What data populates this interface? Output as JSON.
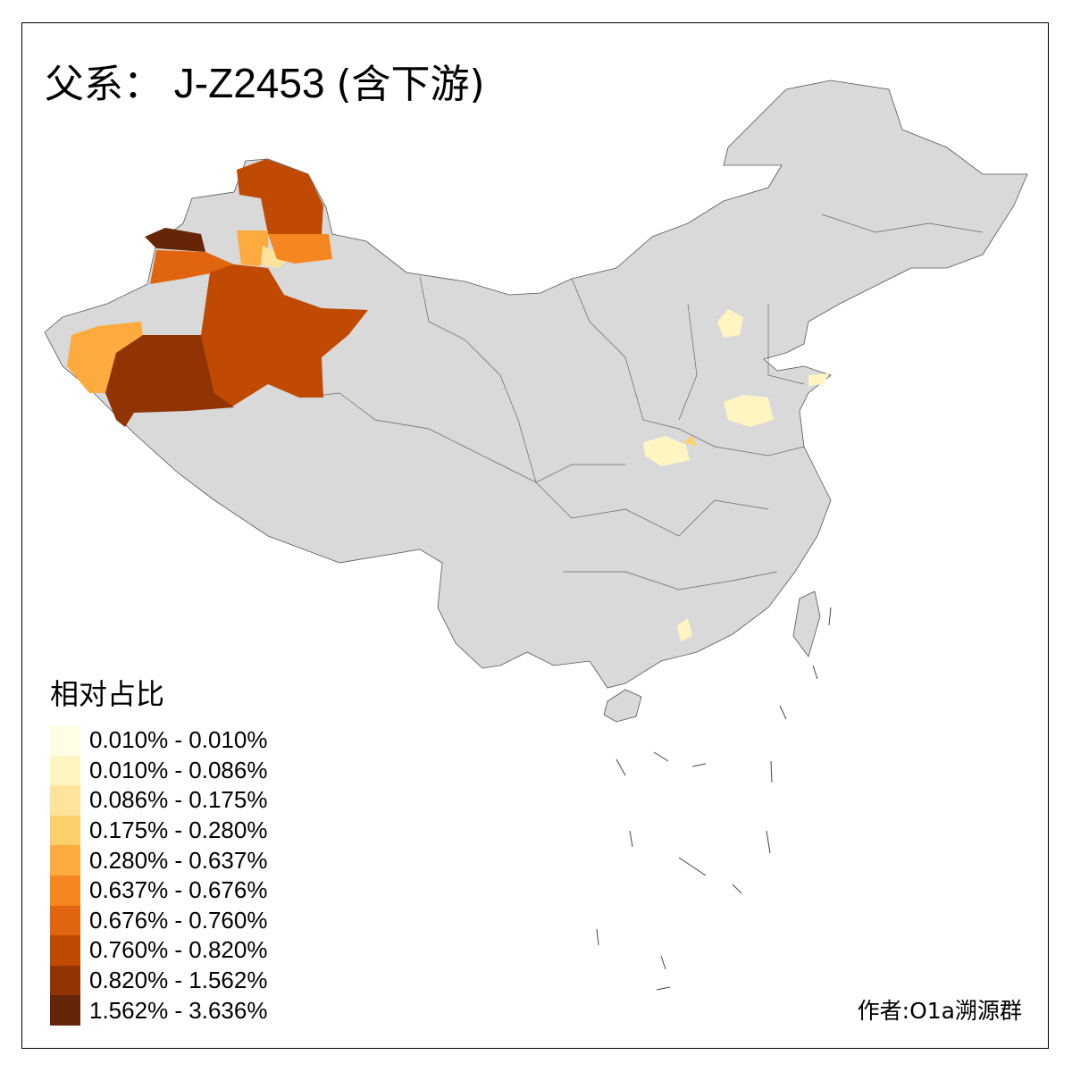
{
  "title": {
    "prefix": "父系：",
    "haplogroup": "J-Z2453",
    "suffix": "(含下游)"
  },
  "map": {
    "base_color": "#d9d9d9",
    "border_color": "#555555",
    "regions": [
      {
        "name": "Altay",
        "color": "#c04a02"
      },
      {
        "name": "Bortala",
        "color": "#662506"
      },
      {
        "name": "Ili",
        "color": "#e1640f"
      },
      {
        "name": "Tacheng",
        "color": "#fdaa3e"
      },
      {
        "name": "Karamay",
        "color": "#fee49a"
      },
      {
        "name": "Changji",
        "color": "#f6861f"
      },
      {
        "name": "Bayingolin",
        "color": "#c04a02"
      },
      {
        "name": "Kashgar",
        "color": "#fdaa3e"
      },
      {
        "name": "Hotan",
        "color": "#923304"
      },
      {
        "name": "Beijing",
        "color": "#fff5c2"
      },
      {
        "name": "Shandong-west",
        "color": "#fff5c2"
      },
      {
        "name": "Qingdao",
        "color": "#fff5c2"
      },
      {
        "name": "Henan-south",
        "color": "#fff5c2"
      },
      {
        "name": "Henan-spot",
        "color": "#fed06a"
      },
      {
        "name": "Guangdong-spot",
        "color": "#fff5c2"
      }
    ]
  },
  "legend": {
    "title": "相对占比",
    "items": [
      {
        "label": "0.010% - 0.010%",
        "color": "#fffde3"
      },
      {
        "label": "0.010% - 0.086%",
        "color": "#fff5c2"
      },
      {
        "label": "0.086% - 0.175%",
        "color": "#fee49a"
      },
      {
        "label": "0.175% - 0.280%",
        "color": "#fed06a"
      },
      {
        "label": "0.280% - 0.637%",
        "color": "#fdaa3e"
      },
      {
        "label": "0.637% - 0.676%",
        "color": "#f6861f"
      },
      {
        "label": "0.676% - 0.760%",
        "color": "#e1640f"
      },
      {
        "label": "0.760% - 0.820%",
        "color": "#c04a02"
      },
      {
        "label": "0.820% - 1.562%",
        "color": "#923304"
      },
      {
        "label": "1.562% - 3.636%",
        "color": "#662506"
      }
    ]
  },
  "author": "作者:O1a溯源群"
}
